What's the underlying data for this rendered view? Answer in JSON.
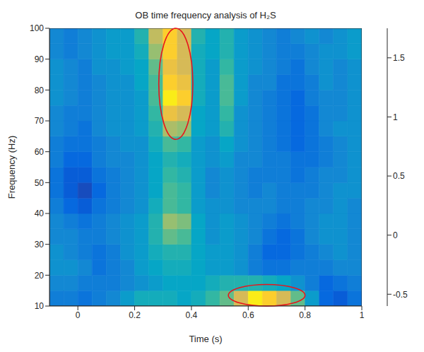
{
  "chart_data": {
    "type": "heatmap",
    "title": "OB time frequency analysis of H₂S",
    "x_label": "Time (s)",
    "y_label": "Frequency (Hz)",
    "xlim": [
      -0.1,
      1.0
    ],
    "ylim": [
      10,
      100
    ],
    "xticks": [
      0,
      0.2,
      0.4,
      0.6,
      0.8,
      1
    ],
    "yticks": [
      10,
      20,
      30,
      40,
      50,
      60,
      70,
      80,
      90,
      100
    ],
    "x_bins": [
      -0.1,
      -0.05,
      0,
      0.05,
      0.1,
      0.15,
      0.2,
      0.25,
      0.3,
      0.35,
      0.4,
      0.45,
      0.5,
      0.55,
      0.6,
      0.65,
      0.7,
      0.75,
      0.8,
      0.85,
      0.9,
      0.95,
      1.0
    ],
    "y_bins": [
      10,
      15,
      20,
      25,
      30,
      35,
      40,
      45,
      50,
      55,
      60,
      65,
      70,
      75,
      80,
      85,
      90,
      95,
      100
    ],
    "values": [
      [
        0.0,
        0.0,
        -0.1,
        0.0,
        0.1,
        0.3,
        0.5,
        0.5,
        0.5,
        0.4,
        0.5,
        0.7,
        0.9,
        1.4,
        1.7,
        1.6,
        1.4,
        0.9,
        0.3,
        -0.2,
        -0.3,
        -0.1
      ],
      [
        0.1,
        0.1,
        0.0,
        0.0,
        0.0,
        0.1,
        0.2,
        0.3,
        0.4,
        0.4,
        0.4,
        0.5,
        0.6,
        0.6,
        0.6,
        0.5,
        0.4,
        0.2,
        0.0,
        -0.2,
        -0.1,
        0.0
      ],
      [
        0.2,
        0.2,
        0.1,
        -0.1,
        0.0,
        0.1,
        0.3,
        0.4,
        0.5,
        0.5,
        0.4,
        0.3,
        0.3,
        0.2,
        0.0,
        -0.1,
        -0.1,
        0.0,
        0.0,
        0.0,
        0.1,
        0.1
      ],
      [
        0.2,
        0.1,
        0.0,
        -0.1,
        0.0,
        0.2,
        0.3,
        0.5,
        0.6,
        0.6,
        0.4,
        0.3,
        0.3,
        0.2,
        0.0,
        -0.2,
        -0.2,
        -0.1,
        0.0,
        0.1,
        0.2,
        0.1
      ],
      [
        0.1,
        0.1,
        0.0,
        0.0,
        0.1,
        0.2,
        0.3,
        0.6,
        0.9,
        0.8,
        0.4,
        0.2,
        0.3,
        0.2,
        0.1,
        -0.1,
        -0.2,
        -0.1,
        0.1,
        0.2,
        0.2,
        0.1
      ],
      [
        0.1,
        0.0,
        -0.1,
        0.0,
        0.1,
        0.2,
        0.3,
        0.6,
        1.1,
        1.0,
        0.4,
        0.2,
        0.3,
        0.2,
        0.1,
        0.0,
        -0.1,
        0.0,
        0.1,
        0.2,
        0.2,
        0.1
      ],
      [
        0.0,
        -0.2,
        -0.3,
        -0.1,
        0.0,
        0.1,
        0.2,
        0.5,
        0.8,
        0.7,
        0.3,
        0.2,
        0.2,
        0.1,
        0.1,
        0.1,
        0.0,
        0.0,
        0.1,
        0.1,
        0.2,
        0.1
      ],
      [
        -0.1,
        -0.3,
        -0.4,
        -0.2,
        0.0,
        0.1,
        0.2,
        0.4,
        0.8,
        0.7,
        0.3,
        0.1,
        0.2,
        0.1,
        0.0,
        0.1,
        0.0,
        0.0,
        0.0,
        0.1,
        0.2,
        0.2
      ],
      [
        -0.1,
        -0.3,
        -0.3,
        -0.1,
        0.0,
        0.1,
        0.2,
        0.4,
        0.7,
        0.6,
        0.3,
        0.1,
        0.2,
        0.1,
        0.0,
        0.0,
        0.0,
        -0.1,
        0.0,
        0.1,
        0.1,
        0.2
      ],
      [
        0.0,
        -0.2,
        -0.2,
        0.0,
        0.1,
        0.1,
        0.2,
        0.4,
        0.6,
        0.5,
        0.3,
        0.2,
        0.3,
        0.1,
        0.1,
        0.0,
        0.0,
        -0.1,
        -0.1,
        0.0,
        0.1,
        0.2
      ],
      [
        0.0,
        -0.1,
        -0.1,
        0.0,
        0.1,
        0.2,
        0.2,
        0.5,
        0.8,
        0.7,
        0.3,
        0.2,
        0.4,
        0.2,
        0.1,
        0.0,
        -0.1,
        -0.2,
        -0.1,
        0.0,
        0.1,
        0.2
      ],
      [
        0.1,
        0.0,
        -0.1,
        0.1,
        0.2,
        0.2,
        0.3,
        0.6,
        1.2,
        1.1,
        0.4,
        0.3,
        0.6,
        0.2,
        0.1,
        0.0,
        -0.1,
        -0.2,
        -0.1,
        0.1,
        0.2,
        0.2
      ],
      [
        0.1,
        0.0,
        0.0,
        0.1,
        0.2,
        0.2,
        0.3,
        0.7,
        1.5,
        1.4,
        0.4,
        0.3,
        0.7,
        0.2,
        0.1,
        0.0,
        -0.1,
        -0.2,
        -0.1,
        0.1,
        0.1,
        0.2
      ],
      [
        0.2,
        0.1,
        0.0,
        0.1,
        0.2,
        0.2,
        0.3,
        0.8,
        1.7,
        1.6,
        0.5,
        0.3,
        0.8,
        0.3,
        0.1,
        0.0,
        -0.1,
        -0.2,
        0.0,
        0.1,
        0.1,
        0.2
      ],
      [
        0.2,
        0.1,
        0.0,
        0.1,
        0.2,
        0.2,
        0.4,
        0.8,
        1.6,
        1.5,
        0.5,
        0.3,
        0.8,
        0.3,
        0.1,
        0.1,
        -0.1,
        -0.1,
        0.0,
        0.2,
        0.1,
        0.2
      ],
      [
        0.2,
        0.1,
        0.0,
        0.2,
        0.2,
        0.3,
        0.4,
        0.9,
        1.5,
        1.4,
        0.5,
        0.3,
        0.7,
        0.3,
        0.2,
        0.1,
        0.0,
        -0.1,
        0.1,
        0.2,
        0.1,
        0.2
      ],
      [
        0.1,
        0.0,
        0.1,
        0.2,
        0.3,
        0.3,
        0.5,
        1.1,
        1.6,
        1.4,
        0.5,
        0.4,
        0.6,
        0.3,
        0.2,
        0.1,
        0.0,
        0.0,
        0.1,
        0.2,
        0.2,
        0.3
      ],
      [
        0.1,
        0.0,
        0.1,
        0.2,
        0.3,
        0.3,
        0.6,
        1.3,
        1.6,
        1.4,
        0.6,
        0.4,
        0.6,
        0.3,
        0.2,
        0.1,
        0.0,
        0.1,
        0.2,
        0.1,
        0.2,
        0.3
      ]
    ],
    "colorbar": {
      "range": [
        -0.6,
        1.75
      ],
      "ticks": [
        -0.5,
        0,
        0.5,
        1,
        1.5
      ]
    },
    "highlights": [
      {
        "x": [
          0.285,
          0.405
        ],
        "y": [
          64,
          100
        ],
        "color": "#e8141b"
      },
      {
        "x": [
          0.53,
          0.8
        ],
        "y": [
          10,
          17
        ],
        "color": "#e8141b"
      }
    ]
  }
}
